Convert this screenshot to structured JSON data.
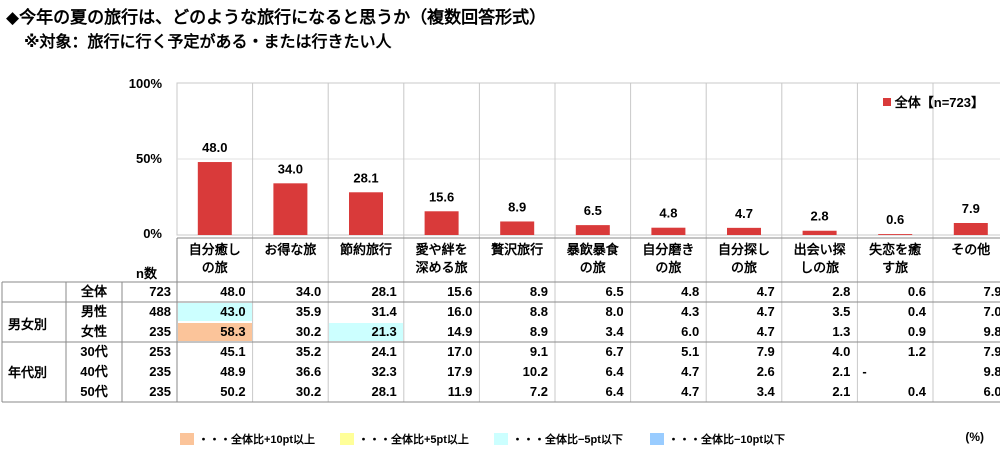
{
  "title": "◆今年の夏の旅行は、どのような旅行になると思うか（複数回答形式）",
  "subtitle": "※対象：旅行に行く予定がある・または行きたい人",
  "colors": {
    "bar": "#d93a3a",
    "plus10": "#fbc49a",
    "plus5": "#ffff99",
    "minus5": "#ccffff",
    "minus10": "#99ccff"
  },
  "chart_data": {
    "type": "bar",
    "categories": [
      "自分癒しの旅",
      "お得な旅",
      "節約旅行",
      "愛や絆を深める旅",
      "贅沢旅行",
      "暴飲暴食の旅",
      "自分磨きの旅",
      "自分探しの旅",
      "出会い探しの旅",
      "失恋を癒す旅",
      "その他"
    ],
    "series": [
      {
        "name": "全体【n=723】",
        "values": [
          48.0,
          34.0,
          28.1,
          15.6,
          8.9,
          6.5,
          4.8,
          4.7,
          2.8,
          0.6,
          7.9
        ]
      }
    ],
    "ylim": [
      0,
      100
    ],
    "yticks": [
      "100%",
      "50%",
      "0%"
    ],
    "value_labels": [
      "48.0",
      "34.0",
      "28.1",
      "15.6",
      "8.9",
      "6.5",
      "4.8",
      "4.7",
      "2.8",
      "0.6",
      "7.9"
    ],
    "legend": "top-right"
  },
  "table": {
    "n_header": "n数",
    "headers": [
      "自分癒し\nの旅",
      "お得な旅",
      "節約旅行",
      "愛や絆を\n深める旅",
      "贅沢旅行",
      "暴飲暴食\nの旅",
      "自分磨き\nの旅",
      "自分探し\nの旅",
      "出会い探\nしの旅",
      "失恋を癒\nす旅",
      "その他"
    ],
    "groups": [
      "男女別",
      "年代別"
    ],
    "rows": [
      {
        "label": "全体",
        "n": "723",
        "values": [
          "48.0",
          "34.0",
          "28.1",
          "15.6",
          "8.9",
          "6.5",
          "4.8",
          "4.7",
          "2.8",
          "0.6",
          "7.9"
        ],
        "highlight": [
          "",
          "",
          "",
          "",
          "",
          "",
          "",
          "",
          "",
          "",
          ""
        ]
      },
      {
        "label": "男性",
        "n": "488",
        "values": [
          "43.0",
          "35.9",
          "31.4",
          "16.0",
          "8.8",
          "8.0",
          "4.3",
          "4.7",
          "3.5",
          "0.4",
          "7.0"
        ],
        "highlight": [
          "minus5",
          "",
          "",
          "",
          "",
          "",
          "",
          "",
          "",
          "",
          ""
        ]
      },
      {
        "label": "女性",
        "n": "235",
        "values": [
          "58.3",
          "30.2",
          "21.3",
          "14.9",
          "8.9",
          "3.4",
          "6.0",
          "4.7",
          "1.3",
          "0.9",
          "9.8"
        ],
        "highlight": [
          "plus10",
          "",
          "minus5",
          "",
          "",
          "",
          "",
          "",
          "",
          "",
          ""
        ]
      },
      {
        "label": "30代",
        "n": "253",
        "values": [
          "45.1",
          "35.2",
          "24.1",
          "17.0",
          "9.1",
          "6.7",
          "5.1",
          "7.9",
          "4.0",
          "1.2",
          "7.9"
        ],
        "highlight": [
          "",
          "",
          "",
          "",
          "",
          "",
          "",
          "",
          "",
          "",
          ""
        ]
      },
      {
        "label": "40代",
        "n": "235",
        "values": [
          "48.9",
          "36.6",
          "32.3",
          "17.9",
          "10.2",
          "6.4",
          "4.7",
          "2.6",
          "2.1",
          "-",
          "9.8"
        ],
        "highlight": [
          "",
          "",
          "",
          "",
          "",
          "",
          "",
          "",
          "",
          "",
          ""
        ]
      },
      {
        "label": "50代",
        "n": "235",
        "values": [
          "50.2",
          "30.2",
          "28.1",
          "11.9",
          "7.2",
          "6.4",
          "4.7",
          "3.4",
          "2.1",
          "0.4",
          "6.0"
        ],
        "highlight": [
          "",
          "",
          "",
          "",
          "",
          "",
          "",
          "",
          "",
          "",
          ""
        ]
      }
    ]
  },
  "legend": [
    {
      "label": "・・・全体比+10pt以上",
      "color": "plus10"
    },
    {
      "label": "・・・全体比+5pt以上",
      "color": "plus5"
    },
    {
      "label": "・・・全体比−5pt以下",
      "color": "minus5"
    },
    {
      "label": "・・・全体比−10pt以下",
      "color": "minus10"
    }
  ],
  "unit": "(%)"
}
